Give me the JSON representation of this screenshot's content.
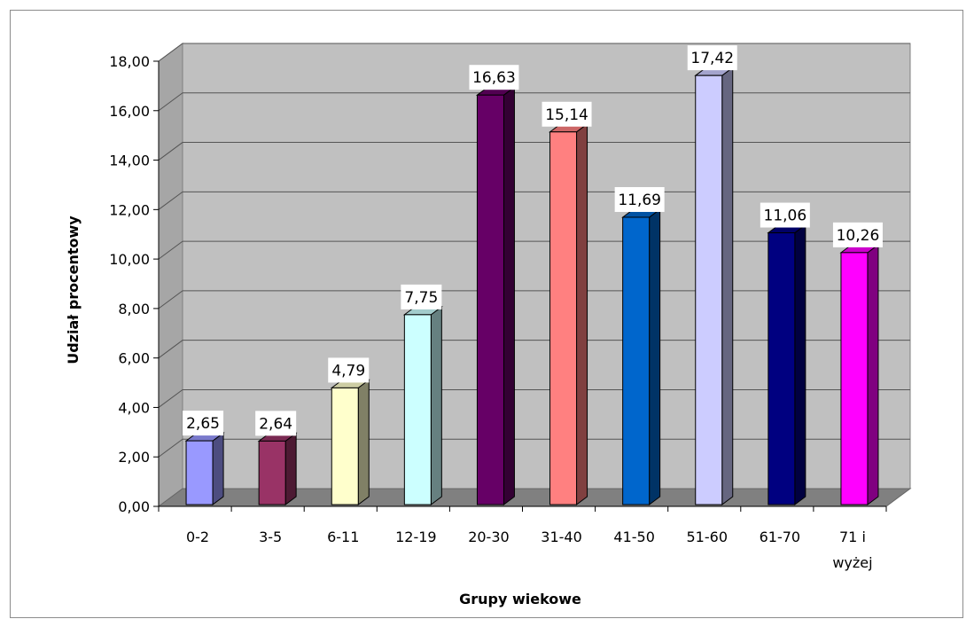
{
  "chart_data": {
    "type": "bar",
    "title": "",
    "xlabel": "Grupy wiekowe",
    "ylabel": "Udział procentowy",
    "categories": [
      "0-2",
      "3-5",
      "6-11",
      "12-19",
      "20-30",
      "31-40",
      "41-50",
      "51-60",
      "61-70",
      "71 i wyżej"
    ],
    "values": [
      2.65,
      2.64,
      4.79,
      7.75,
      16.63,
      15.14,
      11.69,
      17.42,
      11.06,
      10.26
    ],
    "data_labels": [
      "2,65",
      "2,64",
      "4,79",
      "7,75",
      "16,63",
      "15,14",
      "11,69",
      "17,42",
      "11,06",
      "10,26"
    ],
    "ylim": [
      0,
      18
    ],
    "yticks": [
      "0,00",
      "2,00",
      "4,00",
      "6,00",
      "8,00",
      "10,00",
      "12,00",
      "14,00",
      "16,00",
      "18,00"
    ],
    "grid": true,
    "legend": "none",
    "bar_colors": [
      "#9999ff",
      "#993366",
      "#ffffcc",
      "#ccffff",
      "#660066",
      "#ff8080",
      "#0066cc",
      "#ccccff",
      "#000080",
      "#ff00ff"
    ],
    "wall_color": "#c0c0c0",
    "floor_color": "#808080"
  }
}
